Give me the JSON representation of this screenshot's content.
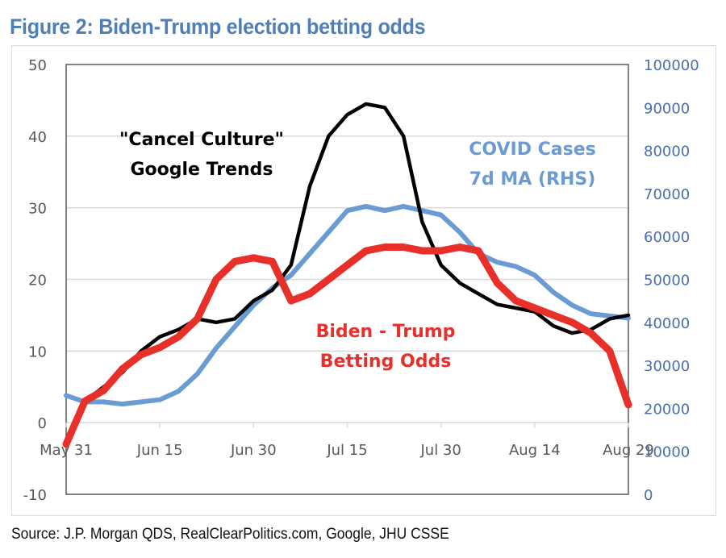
{
  "title": "Figure 2: Biden-Trump election betting odds",
  "source": "Source: J.P. Morgan QDS, RealClearPolitics.com, Google, JHU CSSE",
  "colors": {
    "title": "#4f7fb5",
    "google_trends": "#000000",
    "covid": "#6a9bd3",
    "betting": "#e8302a",
    "right_axis_text": "#4a6fb0",
    "left_axis_text": "#595959",
    "grid": "#d9d9d9"
  },
  "chart_data": {
    "type": "line",
    "title": "Figure 2: Biden-Trump election betting odds",
    "xlabel": "",
    "ylabel": "",
    "y2label": "",
    "x_tick_labels": [
      "May 31",
      "Jun 15",
      "Jun 30",
      "Jul 15",
      "Jul 30",
      "Aug 14",
      "Aug 29"
    ],
    "x_days_from_may31": [
      0,
      3,
      6,
      9,
      12,
      15,
      18,
      21,
      24,
      27,
      30,
      33,
      36,
      39,
      42,
      45,
      48,
      51,
      54,
      57,
      60,
      63,
      66,
      69,
      72,
      75,
      78,
      81,
      84,
      87,
      90
    ],
    "ylim_left": [
      -10,
      50
    ],
    "yticks_left": [
      -10,
      0,
      10,
      20,
      30,
      40,
      50
    ],
    "ylim_right": [
      0,
      100000
    ],
    "yticks_right": [
      0,
      10000,
      20000,
      30000,
      40000,
      50000,
      60000,
      70000,
      80000,
      90000,
      100000
    ],
    "grid": true,
    "legend": "none (inline annotations)",
    "annotations": [
      {
        "text_lines": [
          "\"Cancel Culture\"",
          "Google Trends"
        ],
        "series": "google_trends",
        "placement": "upper-left"
      },
      {
        "text_lines": [
          "COVID  Cases",
          "7d MA (RHS)"
        ],
        "series": "covid",
        "placement": "upper-right"
      },
      {
        "text_lines": [
          "Biden - Trump",
          "Betting Odds"
        ],
        "series": "betting",
        "placement": "center"
      }
    ],
    "series": [
      {
        "key": "google_trends",
        "name": "\"Cancel Culture\" Google Trends",
        "axis": "left",
        "values": [
          null,
          3,
          5,
          7,
          10,
          12,
          13,
          14.5,
          14,
          14.5,
          17,
          18.5,
          22,
          33,
          40,
          43,
          44.5,
          44,
          40,
          28,
          22,
          19.5,
          18,
          16.5,
          16,
          15.5,
          13.5,
          12.5,
          13,
          14.5,
          15
        ]
      },
      {
        "key": "covid",
        "name": "COVID Cases 7d MA (RHS)",
        "axis": "right",
        "values": [
          23000,
          21500,
          21500,
          21000,
          21500,
          22000,
          24000,
          28000,
          34000,
          39000,
          44000,
          48000,
          51000,
          56000,
          61000,
          66000,
          67000,
          66000,
          67000,
          66000,
          65000,
          61000,
          56000,
          54000,
          53000,
          51000,
          47000,
          44000,
          42000,
          41500,
          41000
        ]
      },
      {
        "key": "betting",
        "name": "Biden - Trump Betting Odds",
        "axis": "left",
        "values": [
          -3,
          3,
          4.5,
          7.5,
          9.5,
          10.5,
          12,
          14.5,
          20,
          22.5,
          23,
          22.5,
          17,
          18,
          20,
          22,
          24,
          24.5,
          24.5,
          24,
          24,
          24.5,
          24,
          19.5,
          17,
          16,
          15,
          14,
          12.5,
          10,
          2.5
        ]
      }
    ]
  }
}
